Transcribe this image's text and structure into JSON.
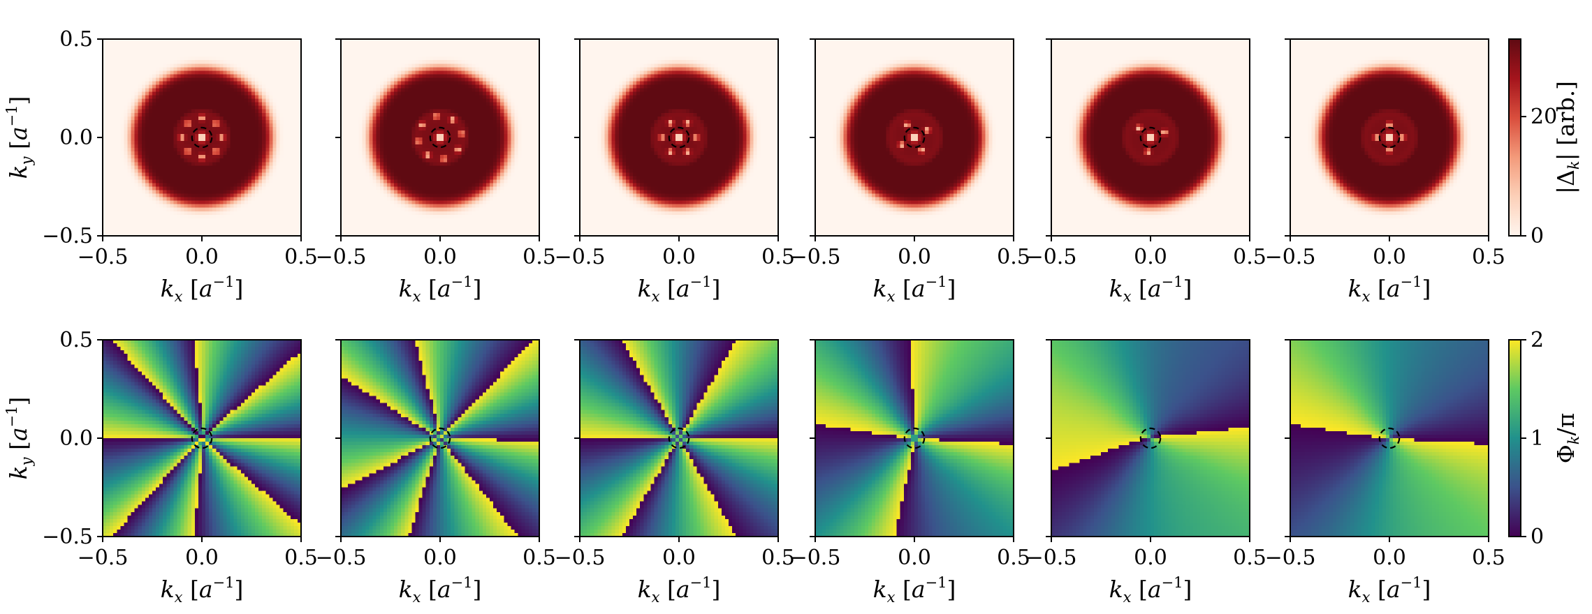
{
  "figure": {
    "rows": 2,
    "cols": 6,
    "xlabel": {
      "sym": "k",
      "sub": "x",
      "unit": "[a",
      "exp": "−1",
      "close": "]"
    },
    "ylabel": {
      "sym": "k",
      "sub": "y",
      "unit": "[a",
      "exp": "−1",
      "close": "]"
    },
    "tick_labels": [
      "−0.5",
      "0.0",
      "0.5"
    ],
    "circle_radius": 0.05
  },
  "chart_data": [
    {
      "type": "heatmap",
      "row": "magnitude",
      "x_range": [
        -0.5,
        0.5
      ],
      "y_range": [
        -0.5,
        0.5
      ],
      "xticks": [
        -0.5,
        0.0,
        0.5
      ],
      "yticks": [
        -0.5,
        0.0,
        0.5
      ],
      "colormap": "reds",
      "colors": [
        "#fff5ee",
        "#fcd0b8",
        "#f39a7a",
        "#d94e3d",
        "#a4141c",
        "#5f0a12"
      ],
      "colorbar": {
        "label": "|Δ_k| [arb.]",
        "label_parts": {
          "open": "|Δ",
          "sub": "k",
          "close": "| [arb.]"
        },
        "range": [
          0,
          33
        ],
        "ticks": [
          0,
          20
        ],
        "tick_labels": [
          "0",
          "20"
        ]
      },
      "ring": {
        "center": 0.26,
        "width": 0.1,
        "peak": 33
      },
      "panels": [
        {
          "spot_count": 8,
          "spot_radius": 0.1,
          "rotation_deg": 0
        },
        {
          "spot_count": 8,
          "spot_radius": 0.11,
          "rotation_deg": 10
        },
        {
          "spot_count": 6,
          "spot_radius": 0.085,
          "rotation_deg": 0
        },
        {
          "spot_count": 4,
          "spot_radius": 0.075,
          "rotation_deg": 30
        },
        {
          "spot_count": 3,
          "spot_radius": 0.075,
          "rotation_deg": 20
        },
        {
          "spot_count": 4,
          "spot_radius": 0.065,
          "rotation_deg": 0
        }
      ]
    },
    {
      "type": "heatmap",
      "row": "phase",
      "x_range": [
        -0.5,
        0.5
      ],
      "y_range": [
        -0.5,
        0.5
      ],
      "xticks": [
        -0.5,
        0.0,
        0.5
      ],
      "yticks": [
        -0.5,
        0.0,
        0.5
      ],
      "colormap": "viridis",
      "colors": [
        "#440154",
        "#3b528b",
        "#21918c",
        "#5ec962",
        "#fde725"
      ],
      "colorbar": {
        "label": "Φ_k/π",
        "label_parts": {
          "open": "Φ",
          "sub": "k",
          "close": "/π"
        },
        "range": [
          0,
          2
        ],
        "ticks": [
          0,
          1,
          2
        ],
        "tick_labels": [
          "0",
          "1",
          "2"
        ]
      },
      "panels": [
        {
          "winding": 8,
          "offset_deg": 0,
          "twist": 0.6
        },
        {
          "winding": 7,
          "offset_deg": 15,
          "twist": 0.5
        },
        {
          "winding": 6,
          "offset_deg": 0,
          "twist": 0.4
        },
        {
          "winding": 4,
          "offset_deg": 20,
          "twist": 0.5
        },
        {
          "winding": 2,
          "offset_deg": -20,
          "twist": 0.35
        },
        {
          "winding": 2,
          "offset_deg": 10,
          "twist": 0.25
        }
      ]
    }
  ]
}
